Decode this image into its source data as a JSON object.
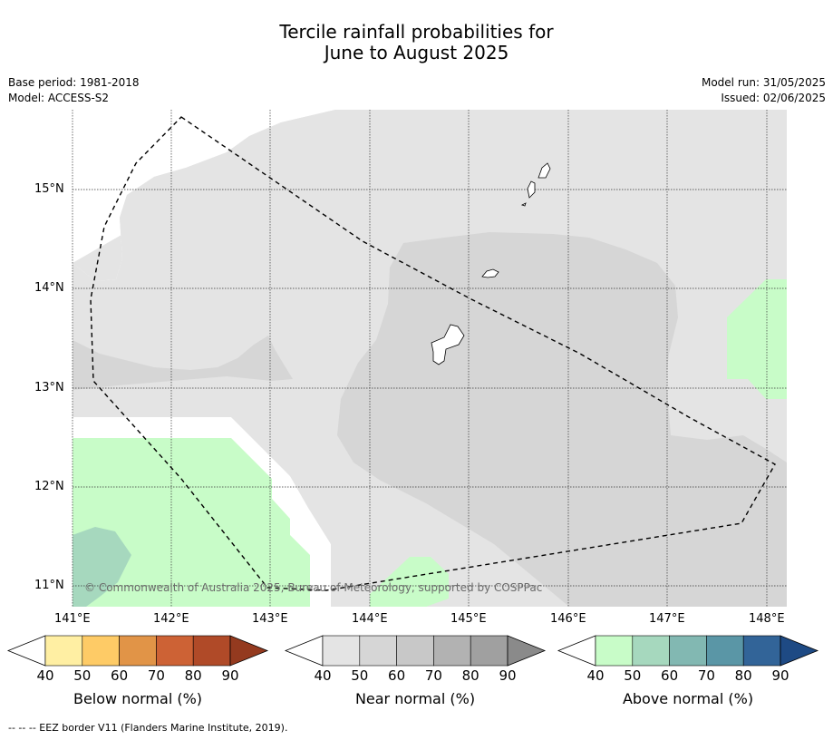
{
  "title_line1": "Tercile rainfall probabilities for",
  "title_line2": "June to August 2025",
  "base_period": "Base period: 1981-2018",
  "model": "Model: ACCESS-S2",
  "model_run": "Model run: 31/05/2025",
  "issued": "Issued: 02/06/2025",
  "latitude_labels": [
    "15°N",
    "14°N",
    "13°N",
    "12°N",
    "11°N"
  ],
  "longitude_labels": [
    "141°E",
    "142°E",
    "143°E",
    "144°E",
    "145°E",
    "146°E",
    "147°E",
    "148°E"
  ],
  "copyright": "© Commonwealth of Australia 2025, Bureau of Meteorology, supported by COSPPac",
  "colorbars": [
    {
      "name": "Below normal (%)",
      "ticks": [
        "40",
        "50",
        "60",
        "70",
        "80",
        "90"
      ],
      "colors": [
        "#ffefa3",
        "#fecb66",
        "#e19447",
        "#cd6235",
        "#b04a28",
        "#943a1f"
      ]
    },
    {
      "name": "Near normal (%)",
      "ticks": [
        "40",
        "50",
        "60",
        "70",
        "80",
        "90"
      ],
      "colors": [
        "#e4e4e4",
        "#d6d6d6",
        "#c8c8c8",
        "#b2b2b2",
        "#a0a0a0",
        "#8a8a8a"
      ]
    },
    {
      "name": "Above normal (%)",
      "ticks": [
        "40",
        "50",
        "60",
        "70",
        "80",
        "90"
      ],
      "colors": [
        "#c8fcc8",
        "#a6d8be",
        "#82b8b2",
        "#5a96a6",
        "#326498",
        "#1e4a84"
      ]
    }
  ],
  "footnote": "--  --  -- EEZ border V11 (Flanders Marine Institute, 2019).",
  "map_colors": {
    "near_40_50": "#e4e4e4",
    "near_50_60": "#d6d6d6",
    "above_40_50": "#c8fcc8",
    "above_50_60": "#a6d8be"
  }
}
